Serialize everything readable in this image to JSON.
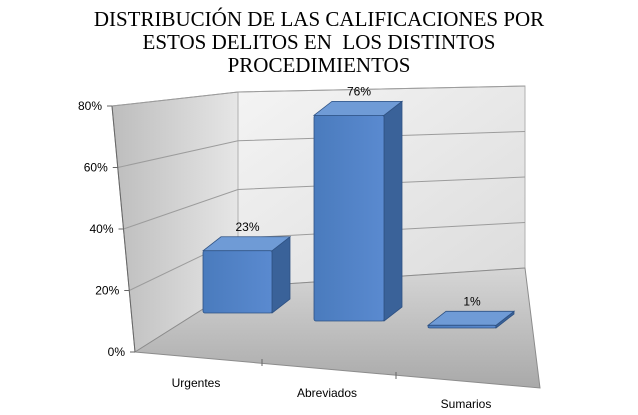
{
  "chart_data": {
    "type": "bar",
    "title_lines": [
      "DISTRIBUCIÓN DE LAS CALIFICACIONES POR",
      "ESTOS DELITOS EN  LOS DISTINTOS",
      "PROCEDIMIENTOS"
    ],
    "categories": [
      "Urgentes",
      "Abreviados",
      "Sumarios"
    ],
    "values": [
      23,
      76,
      1
    ],
    "data_labels": [
      "23%",
      "76%",
      "1%"
    ],
    "y_ticks": [
      "0%",
      "20%",
      "40%",
      "60%",
      "80%"
    ],
    "ylim": [
      0,
      80
    ],
    "grid": true,
    "legend": "none",
    "bar_color": "#4f81bd"
  }
}
